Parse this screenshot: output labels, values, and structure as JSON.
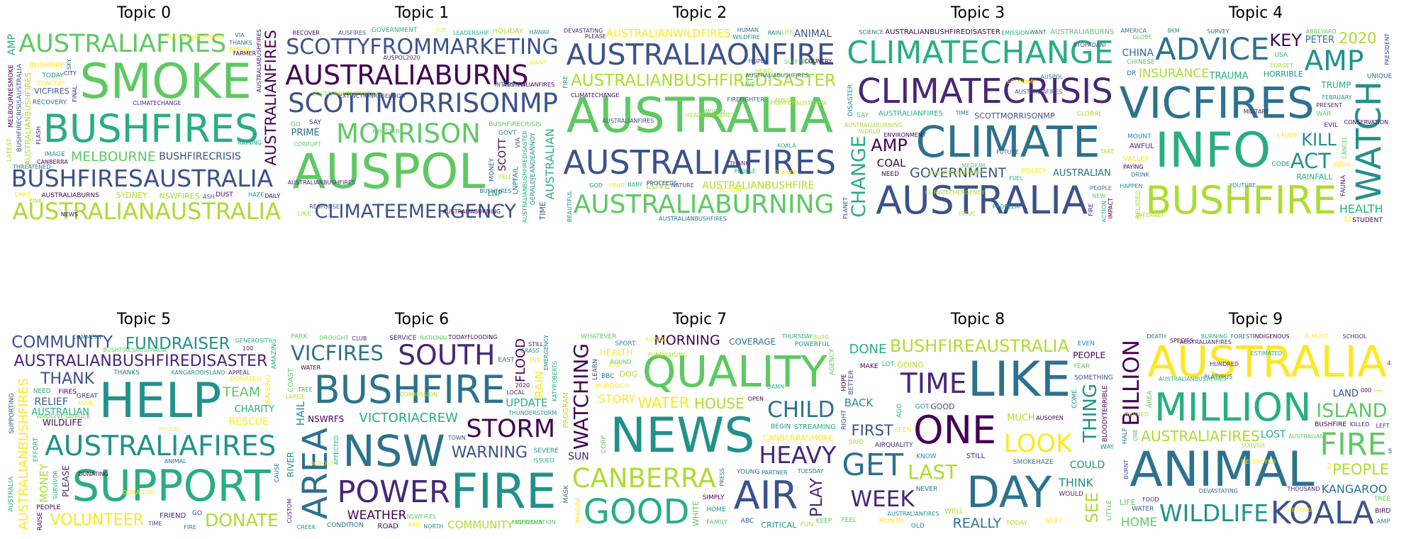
{
  "palette": [
    "#440154",
    "#482677",
    "#3b528b",
    "#2c728e",
    "#21918c",
    "#28ae80",
    "#5ec962",
    "#addc30",
    "#fde725"
  ],
  "topics": [
    {
      "title": "Topic 0",
      "words": [
        "SMOKE",
        "BUSHFIRESAUSTRALIA",
        "BUSHFIRES",
        "AUSTRALIANAUSTRALIA",
        "AUSTRALIAFIRES",
        "AUSTRALIANFIRES",
        "BUSHFIRECRISISAUSTRALIA",
        "MELBOURNE",
        "AUSTRALIABURNING",
        "BUSHFIRECRISIS",
        "NSWFIRES",
        "AUSTRALIANBUSHFIRES",
        "MELBOURNESMOKE",
        "AUSTRALIABUSHFIRES",
        "BUSHFIRE",
        "VICFIRES",
        "AMP",
        "RECOVERY",
        "NEW",
        "TODAY",
        "SYDNEY",
        "CLIMATECHANGE",
        "VIA",
        "CANBERRA",
        "LATEST",
        "THANKS",
        "AUSTRALIABURNS",
        "DAILY",
        "HAZE",
        "DUST",
        "SKY",
        "FINAL",
        "CITY",
        "LAKE",
        "IMAGE",
        "RAINING",
        "PINK",
        "FLASH",
        "FARMER",
        "ASH",
        "NEWS",
        "CONCERT",
        "THREATENED"
      ]
    },
    {
      "title": "Topic 1",
      "words": [
        "AUSPOL",
        "SCOTTMORRISONMP",
        "SCOTTYFROMMARKETING",
        "AUSTRALIABURNS",
        "MORRISON",
        "AUSTRALIANBUSHFIREDISASTER",
        "CLIMATEEMERGENCY",
        "AUSTRALIANFIRES",
        "AUSTRALIANBUSHFIRES",
        "MINISTER",
        "AUSPOL2020",
        "BUSHFIRECRISIS",
        "GOVERNMENT",
        "AUSTRALIABURNING",
        "AUSTRALIAN",
        "PRIME",
        "SCOTT",
        "LNP",
        "HOLIDAY",
        "TIME",
        "GERALDJEANDEANNOY",
        "SCOTTFROMMARKETING",
        "LNPFAIL",
        "CORRUPT",
        "JOB",
        "SAY",
        "RECOVER",
        "LIKE",
        "GO",
        "VIA",
        "AUSFIRES",
        "GOVT",
        "LEADERSHIP",
        "RESPONSE",
        "BUSHFIRES",
        "EXTINCTIONREBELLION",
        "WANT",
        "TELL",
        "HAWAII",
        "INTERVIEW",
        "MONEY"
      ]
    },
    {
      "title": "Topic 2",
      "words": [
        "AUSTRALIA",
        "AUSTRALIAONFIRE",
        "AUSTRALIAFIRES",
        "AUSTRALIABURNING",
        "AUSTRALIANBUSHFIREDISASTER",
        "AUSTRALIABUSHFIRES",
        "AUSTRALIANFIRES",
        "KOALA",
        "RAIN",
        "AUSTRALIANBUSHFIRE",
        "AUSTRALIANBUSHFIRES",
        "AUSTRALIANWILDFIRES",
        "FIREFIGHTER",
        "ANIMAL",
        "HEART",
        "FIRE",
        "PRAYFORAUSTRALIA",
        "LOVE",
        "WILDFIRE",
        "DEVASTATING",
        "CLIMATECHANGE",
        "PICTURE",
        "HEARTBREAKING",
        "SUFFERING",
        "BEAUTIFUL",
        "NATURE",
        "PLANET",
        "GOD",
        "PLEASE",
        "PROCEEDS",
        "THANK",
        "PEOPLE",
        "BABY",
        "HERO",
        "SAVE",
        "LIFE",
        "HOPE",
        "AUSSIE",
        "COUNTRY",
        "HUMAN",
        "WORLD"
      ]
    },
    {
      "title": "Topic 3",
      "words": [
        "CLIMATECHANGE",
        "CLIMATE",
        "AUSTRALIA",
        "CLIMATECRISIS",
        "CLIMATEEMERGENCY",
        "CHANGE",
        "AUSPOL",
        "GOVERNMENT",
        "AMP",
        "AUSTRALIANBUSHFIREDISASTER",
        "AUSTRALIAFIRES",
        "AUSTRALIAN",
        "SCOTTMORRISONMP",
        "AUSTRALIANFIRES",
        "AUSTRALIABURNS",
        "COAL",
        "AUSTRALIABURNING",
        "DISASTER",
        "ACTION",
        "EMISSION",
        "PLANET",
        "SCIENCE",
        "POLICY",
        "NEED",
        "FIRE",
        "GLOBAL",
        "FUTURE",
        "ENVIRONMENT",
        "PEOPLE",
        "WORLD",
        "TIME",
        "ECONOMY",
        "PROBLEM",
        "ISSUE",
        "FUEL",
        "IMPACT",
        "STOPADANI",
        "COUNTRYINDUSTRY",
        "MEDIUM",
        "SAY",
        "WANT",
        "TAKE",
        "NEW"
      ]
    },
    {
      "title": "Topic 4",
      "words": [
        "INFO",
        "VICFIRES",
        "BUSHFIRE",
        "WATCH",
        "ADVICE",
        "AMP",
        "ACT",
        "CONSERVATION",
        "KILL",
        "KEY",
        "2020",
        "INSURANCE",
        "RAINFALL",
        "HEALTH",
        "TRUMP",
        "PETER",
        "CHINA",
        "TRAUMA",
        "VALLEY",
        "STUDENT",
        "HORRIBLE",
        "AWFUL",
        "FEBRUARY",
        "HAPPEN",
        "FAUNA",
        "STUDY",
        "RELATED",
        "FORGET",
        "UNIQUE",
        "GLOBE",
        "PRESIDENT",
        "PRESENT",
        "WAR",
        "DRINK",
        "CODE",
        "EVIL",
        "MOUNT",
        "CHINESE",
        "USA",
        "INDIA",
        "52",
        "8KM",
        "DR",
        "ABBEYARD",
        "AMERICA",
        "YOUTUBE",
        "INTERNET",
        "CANCEL",
        "PAYING",
        "SURVEY",
        "MILITARY"
      ]
    },
    {
      "title": "Topic 5",
      "words": [
        "HELP",
        "SUPPORT",
        "AUSTRALIANBUSHFIREDISASTER",
        "AUSTRALIANBUSHFIRES",
        "AUSTRALIAFIRES",
        "DONATION",
        "DONATE",
        "FUNDRAISER",
        "THANK",
        "VOLUNTEER",
        "COMMUNITY",
        "AUSTRALIAN",
        "TEAM",
        "RESCUE",
        "RELIEF",
        "MONEY",
        "WILDLIFE",
        "CHARITY",
        "PLEASE",
        "AMAZING",
        "EFFORT",
        "FRIEND",
        "RAISING",
        "GENEROSITY",
        "AUSTRALIA",
        "GREAT",
        "THANKS",
        "FIRES",
        "PEOPLE",
        "DONATED",
        "WHOGIVESATRUCK",
        "SUPPORTING",
        "NEED",
        "SURVIVOR",
        "ANIMAL",
        "GO",
        "RAISE",
        "TIME",
        "KANGAROOISLAND",
        "BUSHFIRESAUSTRALIA",
        "DONATING",
        "FIRE",
        "100",
        "COMMENT",
        "CAUSE",
        "LOVE",
        "PROUD",
        "APPEAL"
      ]
    },
    {
      "title": "Topic 6",
      "words": [
        "FIRE",
        "NSW",
        "BUSHFIRE",
        "AREA",
        "POWER",
        "SOUTH",
        "STORM",
        "VICFIRES",
        "VICTORIACREW",
        "WARNING",
        "WEATHER",
        "UPDATE",
        "COMMUNITY",
        "FLOOD",
        "RAIN",
        "HAIL",
        "RIVER",
        "NSWFIRES",
        "NSWRFS",
        "EMERGENCY",
        "SEVERE",
        "ROAD",
        "COAST",
        "CONDITION",
        "THUNDERSTORM",
        "EAST",
        "AMP",
        "SERVICE",
        "ISSUED",
        "CUSTOM",
        "INFORMATION",
        "TODAYFLOODING",
        "DROUGHT",
        "WATER",
        "LOCAL",
        "NATIONAL",
        "CREEK",
        "LARGE",
        "MOUNTAIN",
        "KATYROBERTS",
        "TREE",
        "2020",
        "ACROSS",
        "PARK",
        "NORTH",
        "CLUB",
        "AFFECTED",
        "TOWN",
        "GRASS",
        "COMMISSION",
        "STILL",
        "HIT"
      ]
    },
    {
      "title": "Topic 7",
      "words": [
        "NEWS",
        "QUALITY",
        "AIR",
        "GOOD",
        "HEAVY",
        "CANBERRA",
        "FUNDRAISING",
        "CHILD",
        "WATCHING",
        "HOUSE",
        "PLAY",
        "WATER",
        "MORNING",
        "COVERAGE",
        "STORY",
        "CANBERRASMOKE",
        "SUN",
        "WHITE",
        "HEALTH",
        "CRITICAL",
        "DOG",
        "PROGRAM",
        "STREAMING",
        "BBC",
        "ABC",
        "FUN",
        "IMAGINE",
        "SPORT",
        "MASK",
        "POWERFUL",
        "EYE",
        "AGENCY",
        "YOUNG",
        "MURDOCH",
        "SIMPLY",
        "HOME",
        "WHATEVER",
        "BEGIN",
        "LEARN",
        "KEEP",
        "TUESDAY",
        "THURSDAY",
        "PRESS",
        "FAMILY",
        "CORP",
        "PARTNER",
        "BLOG",
        "REVIEW",
        "DAMN",
        "OPEN",
        "ROUND"
      ]
    },
    {
      "title": "Topic 8",
      "words": [
        "LIKE",
        "DAY",
        "ONE",
        "BUSHFIREAUSTRALIA",
        "GET",
        "TIME",
        "LOOK",
        "WEEK",
        "LAST",
        "THING",
        "SEE",
        "FIRST",
        "REALLY",
        "DONE",
        "THINK",
        "BACK",
        "COULD",
        "MUCH",
        "PEOPLE",
        "GOOD",
        "GOING",
        "STILL",
        "WELL",
        "MAKE",
        "WOULD",
        "SAID",
        "YEAR",
        "MONTH",
        "NEVER",
        "KNOW",
        "EVEN",
        "RIGHT",
        "SEEN",
        "GOT",
        "COME",
        "WAY",
        "LOT",
        "BETTER",
        "NEXT",
        "AGO",
        "AUSOPEN",
        "TODAY",
        "OLD",
        "HOPE",
        "LITTLE",
        "AIRQUALITY",
        "SOMETHING",
        "FEEL",
        "SMOKEHAZE",
        "BLOODYTERRIBLE",
        "AUSTRALIANFIRES"
      ]
    },
    {
      "title": "Topic 9",
      "words": [
        "ANIMAL",
        "AUSTRALIA",
        "MILLION",
        "KOALA",
        "FIRE",
        "WILDLIFE",
        "BILLION",
        "ISLAND",
        "AUSTRALIAFIRES",
        "KANGAROO",
        "PEOPLE",
        "HOME",
        "LIFE",
        "LOST",
        "AUSTRALIAN",
        "LAND",
        "BURNING",
        "BUSHFIRE",
        "1",
        "2",
        "TREE",
        "SPECIES",
        "000",
        "WATER",
        "ONE",
        "FOREST",
        "AMP",
        "HALF",
        "AREA",
        "DESTROYED",
        "ALMOST",
        "KILLED",
        "DEATH",
        "HUNDRED",
        "BURNED",
        "THOUSAND",
        "FOOD",
        "BIRD",
        "DEVASTATING",
        "ESTIMATED",
        "INDIGENOUS",
        "SCHOOL",
        "LEFT",
        "PLATYPUS",
        "HECTARE",
        "AUSTRALIANBUSHFIRES",
        "5",
        "4",
        "AUSTRALIANFIRES",
        "SURVIVE",
        "BURNT"
      ]
    }
  ]
}
